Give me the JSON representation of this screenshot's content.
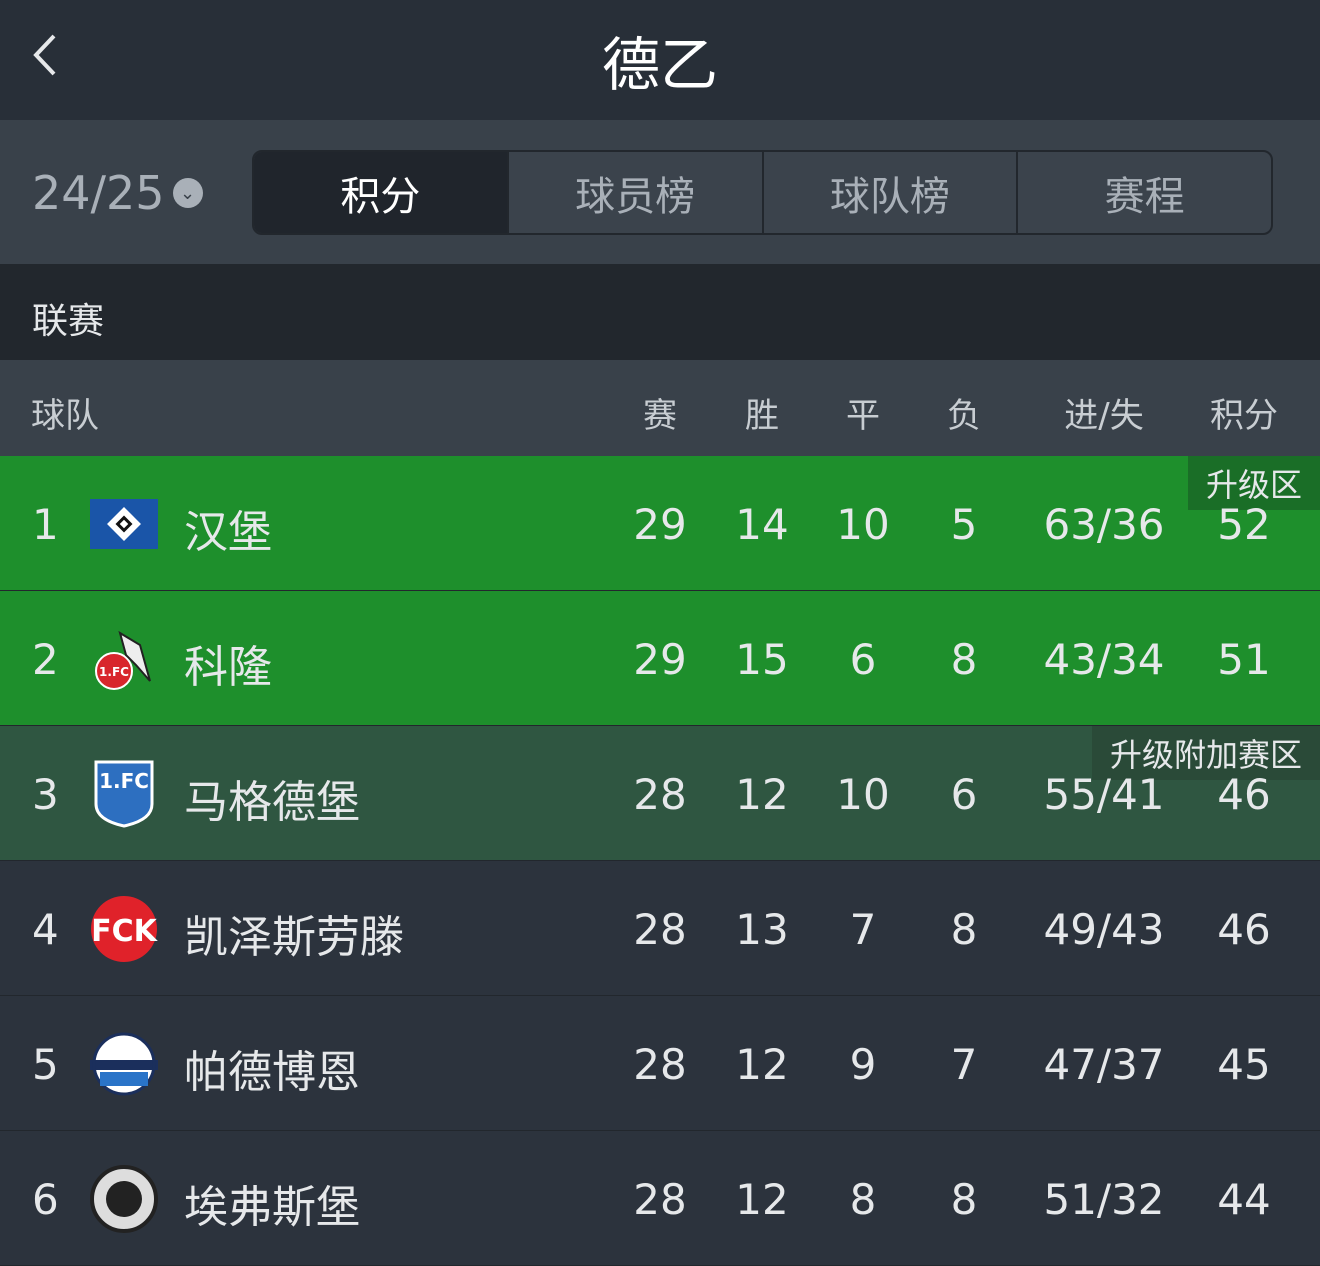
{
  "header": {
    "title": "德乙",
    "back_icon": "chevron-left-icon"
  },
  "season": {
    "value": "24/25",
    "icon": "chevron-down-icon"
  },
  "tabs": [
    {
      "label": "积分",
      "active": true
    },
    {
      "label": "球员榜"
    },
    {
      "label": "球队榜"
    },
    {
      "label": "赛程"
    }
  ],
  "section": "联赛",
  "columns": {
    "team": "球队",
    "played": "赛",
    "won": "胜",
    "drawn": "平",
    "lost": "负",
    "goals": "进/失",
    "points": "积分"
  },
  "zones": {
    "promotion": "升级区",
    "playoff": "升级附加赛区"
  },
  "colors": {
    "promotion": "#1e8f2c",
    "playoff": "#2f5641",
    "row": "#2c333d"
  },
  "rows": [
    {
      "rank": "1",
      "team": "汉堡",
      "played": "29",
      "won": "14",
      "drawn": "10",
      "lost": "5",
      "goals": "63/36",
      "points": "52",
      "zone": "promotion"
    },
    {
      "rank": "2",
      "team": "科隆",
      "played": "29",
      "won": "15",
      "drawn": "6",
      "lost": "8",
      "goals": "43/34",
      "points": "51",
      "zone": "promotion"
    },
    {
      "rank": "3",
      "team": "马格德堡",
      "played": "28",
      "won": "12",
      "drawn": "10",
      "lost": "6",
      "goals": "55/41",
      "points": "46",
      "zone": "playoff"
    },
    {
      "rank": "4",
      "team": "凯泽斯劳滕",
      "played": "28",
      "won": "13",
      "drawn": "7",
      "lost": "8",
      "goals": "49/43",
      "points": "46"
    },
    {
      "rank": "5",
      "team": "帕德博恩",
      "played": "28",
      "won": "12",
      "drawn": "9",
      "lost": "7",
      "goals": "47/37",
      "points": "45"
    },
    {
      "rank": "6",
      "team": "埃弗斯堡",
      "played": "28",
      "won": "12",
      "drawn": "8",
      "lost": "8",
      "goals": "51/32",
      "points": "44"
    }
  ]
}
